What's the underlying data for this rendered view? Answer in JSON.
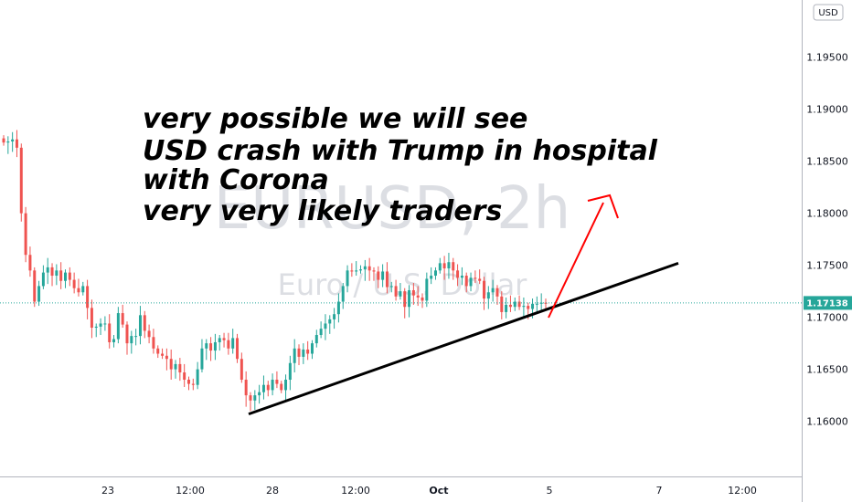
{
  "chart_data": {
    "type": "candlestick",
    "watermark_symbol": "EURUSD, 2h",
    "watermark_description": "Euro / U.S. Dollar",
    "currency_label": "USD",
    "current_price_label": "1.17138",
    "current_price": 1.17138,
    "y_ticks": [
      "1.19500",
      "1.19000",
      "1.18500",
      "1.18000",
      "1.17500",
      "1.17000",
      "1.16500",
      "1.16000"
    ],
    "y_tick_values": [
      1.195,
      1.19,
      1.185,
      1.18,
      1.175,
      1.17,
      1.165,
      1.16
    ],
    "x_ticks": [
      "23",
      "12:00",
      "28",
      "12:00",
      "Oct",
      "5",
      "7",
      "12:00"
    ],
    "ylim": [
      1.1547,
      1.2005
    ],
    "annotation_lines": [
      "very possible we will see",
      "USD crash with Trump in hospital",
      "with Corona",
      "very very likely traders"
    ],
    "trendline": {
      "from": [
        0,
        1.1607
      ],
      "to": [
        1,
        1.1752
      ]
    },
    "up_color": "#26a69a",
    "down_color": "#ef5350",
    "closes": [
      1.1868,
      1.1869,
      1.1871,
      1.1863,
      1.18,
      1.176,
      1.1745,
      1.1715,
      1.173,
      1.1743,
      1.1748,
      1.174,
      1.1745,
      1.1735,
      1.1743,
      1.1736,
      1.1728,
      1.1724,
      1.173,
      1.1709,
      1.169,
      1.1691,
      1.1694,
      1.1694,
      1.1676,
      1.1679,
      1.1704,
      1.1693,
      1.1675,
      1.1682,
      1.1682,
      1.1702,
      1.1687,
      1.1681,
      1.167,
      1.1665,
      1.1663,
      1.166,
      1.165,
      1.1655,
      1.1647,
      1.164,
      1.1636,
      1.1635,
      1.165,
      1.167,
      1.1675,
      1.1668,
      1.1676,
      1.168,
      1.1678,
      1.167,
      1.168,
      1.166,
      1.164,
      1.1625,
      1.162,
      1.1625,
      1.1628,
      1.1635,
      1.163,
      1.164,
      1.1636,
      1.163,
      1.164,
      1.1656,
      1.167,
      1.1662,
      1.1669,
      1.1665,
      1.1675,
      1.1683,
      1.1689,
      1.1694,
      1.1698,
      1.1703,
      1.1715,
      1.173,
      1.1745,
      1.1744,
      1.1745,
      1.1746,
      1.1749,
      1.1745,
      1.1744,
      1.1736,
      1.1744,
      1.1729,
      1.173,
      1.172,
      1.1725,
      1.171,
      1.1726,
      1.1721,
      1.1719,
      1.1716,
      1.1737,
      1.174,
      1.1745,
      1.1752,
      1.1747,
      1.1753,
      1.1745,
      1.1738,
      1.174,
      1.173,
      1.1738,
      1.1737,
      1.1735,
      1.1718,
      1.1724,
      1.1728,
      1.172,
      1.1705,
      1.1712,
      1.171,
      1.1715,
      1.171,
      1.1711,
      1.1708,
      1.1713,
      1.1713,
      1.1714,
      1.1713
    ]
  }
}
